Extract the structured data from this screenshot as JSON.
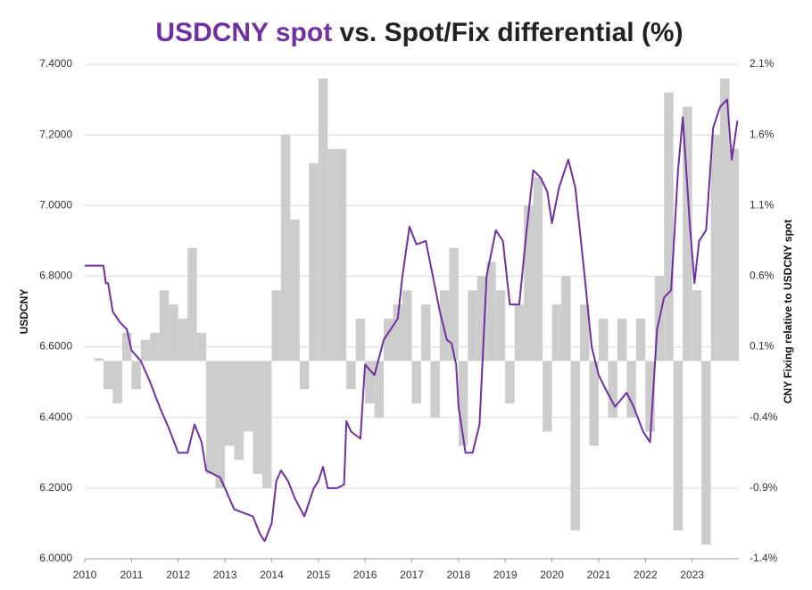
{
  "chart_data": {
    "type": "line",
    "title": [
      "USDCNY spot",
      "vs. Spot/Fix differential (%)"
    ],
    "title_colors": [
      "#7030a0",
      "#222222"
    ],
    "y_label": "USDCNY",
    "y2_label": "CNY Fixing relative to USDCNY spot",
    "xlim": [
      2010,
      2024
    ],
    "xticks": [
      2010,
      2011,
      2012,
      2013,
      2014,
      2015,
      2016,
      2017,
      2018,
      2019,
      2020,
      2021,
      2022,
      2023
    ],
    "ylim": [
      6.0,
      7.4
    ],
    "yticks": [
      {
        "value": 6.0,
        "label": "6.0000"
      },
      {
        "value": 6.2,
        "label": "6.2000"
      },
      {
        "value": 6.4,
        "label": "6.4000"
      },
      {
        "value": 6.6,
        "label": "6.6000"
      },
      {
        "value": 6.8,
        "label": "6.8000"
      },
      {
        "value": 7.0,
        "label": "7.0000"
      },
      {
        "value": 7.2,
        "label": "7.2000"
      },
      {
        "value": 7.4,
        "label": "7.4000"
      }
    ],
    "y2lim": [
      -1.4,
      2.1
    ],
    "y2ticks": [
      {
        "value": -1.4,
        "label": "-1.4%"
      },
      {
        "value": -0.9,
        "label": "-0.9%"
      },
      {
        "value": -0.4,
        "label": "-0.4%"
      },
      {
        "value": 0.1,
        "label": "0.1%"
      },
      {
        "value": 0.6,
        "label": "0.6%"
      },
      {
        "value": 1.1,
        "label": "1.1%"
      },
      {
        "value": 1.6,
        "label": "1.6%"
      },
      {
        "value": 2.1,
        "label": "2.1%"
      }
    ],
    "grid": true,
    "series": [
      {
        "type": "bar",
        "axis": "y2",
        "color": "#cccccc",
        "x": [
          2010.0,
          2010.2,
          2010.4,
          2010.6,
          2010.8,
          2011.0,
          2011.2,
          2011.4,
          2011.6,
          2011.8,
          2012.0,
          2012.2,
          2012.4,
          2012.6,
          2012.8,
          2013.0,
          2013.2,
          2013.4,
          2013.6,
          2013.8,
          2014.0,
          2014.2,
          2014.4,
          2014.6,
          2014.8,
          2015.0,
          2015.2,
          2015.4,
          2015.6,
          2015.8,
          2016.0,
          2016.2,
          2016.4,
          2016.6,
          2016.8,
          2017.0,
          2017.2,
          2017.4,
          2017.6,
          2017.8,
          2018.0,
          2018.2,
          2018.4,
          2018.6,
          2018.8,
          2019.0,
          2019.2,
          2019.4,
          2019.6,
          2019.8,
          2020.0,
          2020.2,
          2020.4,
          2020.6,
          2020.8,
          2021.0,
          2021.2,
          2021.4,
          2021.6,
          2021.8,
          2022.0,
          2022.2,
          2022.4,
          2022.6,
          2022.8,
          2023.0,
          2023.2,
          2023.4,
          2023.6,
          2023.8
        ],
        "values": [
          0.0,
          0.02,
          -0.2,
          -0.3,
          0.2,
          -0.2,
          0.15,
          0.2,
          0.5,
          0.4,
          0.3,
          0.8,
          0.2,
          -0.8,
          -0.9,
          -0.6,
          -0.7,
          -0.5,
          -0.8,
          -0.9,
          0.5,
          1.6,
          1.0,
          -0.2,
          1.4,
          2.0,
          1.5,
          1.5,
          -0.2,
          0.3,
          -0.3,
          -0.4,
          0.3,
          0.4,
          0.5,
          -0.3,
          0.4,
          -0.4,
          0.5,
          0.8,
          -0.6,
          0.5,
          0.6,
          0.7,
          0.5,
          -0.3,
          0.4,
          1.1,
          1.3,
          -0.5,
          0.4,
          0.6,
          -1.2,
          0.4,
          -0.6,
          0.3,
          -0.4,
          0.3,
          -0.4,
          0.3,
          -0.5,
          0.6,
          1.9,
          -1.2,
          1.8,
          0.5,
          -1.3,
          1.6,
          2.0,
          1.5
        ]
      },
      {
        "type": "line",
        "color": "#7030a0",
        "x": [
          2010.0,
          2010.4,
          2010.45,
          2010.5,
          2010.6,
          2010.75,
          2010.9,
          2011.0,
          2011.2,
          2011.4,
          2011.6,
          2011.8,
          2012.0,
          2012.2,
          2012.35,
          2012.5,
          2012.6,
          2012.75,
          2012.9,
          2013.0,
          2013.2,
          2013.4,
          2013.6,
          2013.75,
          2013.85,
          2014.0,
          2014.1,
          2014.2,
          2014.35,
          2014.5,
          2014.7,
          2014.9,
          2015.0,
          2015.1,
          2015.2,
          2015.4,
          2015.55,
          2015.6,
          2015.7,
          2015.9,
          2016.0,
          2016.2,
          2016.4,
          2016.55,
          2016.7,
          2016.8,
          2016.95,
          2017.1,
          2017.3,
          2017.45,
          2017.6,
          2017.75,
          2017.85,
          2017.95,
          2018.0,
          2018.15,
          2018.3,
          2018.45,
          2018.6,
          2018.8,
          2018.95,
          2019.1,
          2019.3,
          2019.45,
          2019.6,
          2019.75,
          2019.9,
          2020.0,
          2020.15,
          2020.35,
          2020.5,
          2020.7,
          2020.85,
          2021.0,
          2021.15,
          2021.35,
          2021.6,
          2021.75,
          2021.95,
          2022.1,
          2022.25,
          2022.4,
          2022.55,
          2022.7,
          2022.8,
          2022.95,
          2023.05,
          2023.15,
          2023.3,
          2023.45,
          2023.6,
          2023.75,
          2023.85,
          2023.97
        ],
        "values": [
          6.83,
          6.83,
          6.78,
          6.78,
          6.7,
          6.67,
          6.65,
          6.59,
          6.56,
          6.5,
          6.43,
          6.37,
          6.3,
          6.3,
          6.38,
          6.33,
          6.25,
          6.24,
          6.23,
          6.2,
          6.14,
          6.13,
          6.12,
          6.07,
          6.05,
          6.1,
          6.22,
          6.25,
          6.22,
          6.17,
          6.12,
          6.2,
          6.22,
          6.26,
          6.2,
          6.2,
          6.21,
          6.39,
          6.36,
          6.34,
          6.55,
          6.52,
          6.62,
          6.65,
          6.68,
          6.8,
          6.94,
          6.89,
          6.9,
          6.8,
          6.7,
          6.62,
          6.61,
          6.55,
          6.43,
          6.3,
          6.3,
          6.38,
          6.8,
          6.93,
          6.9,
          6.72,
          6.72,
          6.92,
          7.1,
          7.08,
          7.04,
          6.95,
          7.05,
          7.13,
          7.05,
          6.8,
          6.6,
          6.52,
          6.48,
          6.43,
          6.47,
          6.43,
          6.36,
          6.33,
          6.65,
          6.74,
          6.76,
          7.1,
          7.25,
          6.95,
          6.78,
          6.9,
          6.93,
          7.22,
          7.28,
          7.3,
          7.13,
          7.24
        ]
      }
    ]
  }
}
